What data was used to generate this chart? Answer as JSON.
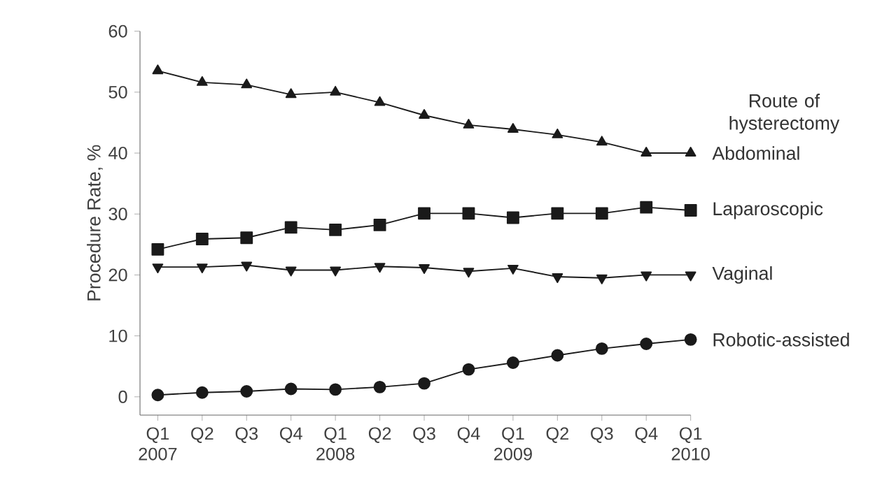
{
  "chart_data": {
    "type": "line",
    "ylabel": "Procedure Rate, %",
    "legend_title": "Route of hysterectomy",
    "categories": [
      "Q1 2007",
      "Q2",
      "Q3",
      "Q4",
      "Q1 2008",
      "Q2",
      "Q3",
      "Q4",
      "Q1 2009",
      "Q2",
      "Q3",
      "Q4",
      "Q1 2010"
    ],
    "ylim": [
      -3,
      60
    ],
    "yticks": [
      0,
      10,
      20,
      30,
      40,
      50,
      60
    ],
    "grid": false,
    "series": [
      {
        "name": "Abdominal",
        "color": "#1a1a1a",
        "marker": "triangle",
        "values": [
          53.5,
          51.6,
          51.2,
          49.6,
          50.0,
          48.3,
          46.2,
          44.6,
          43.9,
          43.0,
          41.8,
          40.0,
          40.0
        ]
      },
      {
        "name": "Laparoscopic",
        "color": "#1a1a1a",
        "marker": "square",
        "values": [
          24.2,
          25.9,
          26.1,
          27.8,
          27.4,
          28.2,
          30.1,
          30.1,
          29.4,
          30.1,
          30.1,
          31.1,
          30.6
        ]
      },
      {
        "name": "Vaginal",
        "color": "#1a1a1a",
        "marker": "triangle down",
        "values": [
          21.3,
          21.3,
          21.6,
          20.8,
          20.8,
          21.4,
          21.2,
          20.6,
          21.1,
          19.7,
          19.5,
          20.0,
          20.0
        ]
      },
      {
        "name": "Robotic-assisted",
        "color": "#1a1a1a",
        "marker": "circle",
        "values": [
          0.3,
          0.7,
          0.9,
          1.3,
          1.2,
          1.6,
          2.2,
          4.5,
          5.6,
          6.8,
          7.9,
          8.7,
          9.4
        ]
      }
    ]
  }
}
